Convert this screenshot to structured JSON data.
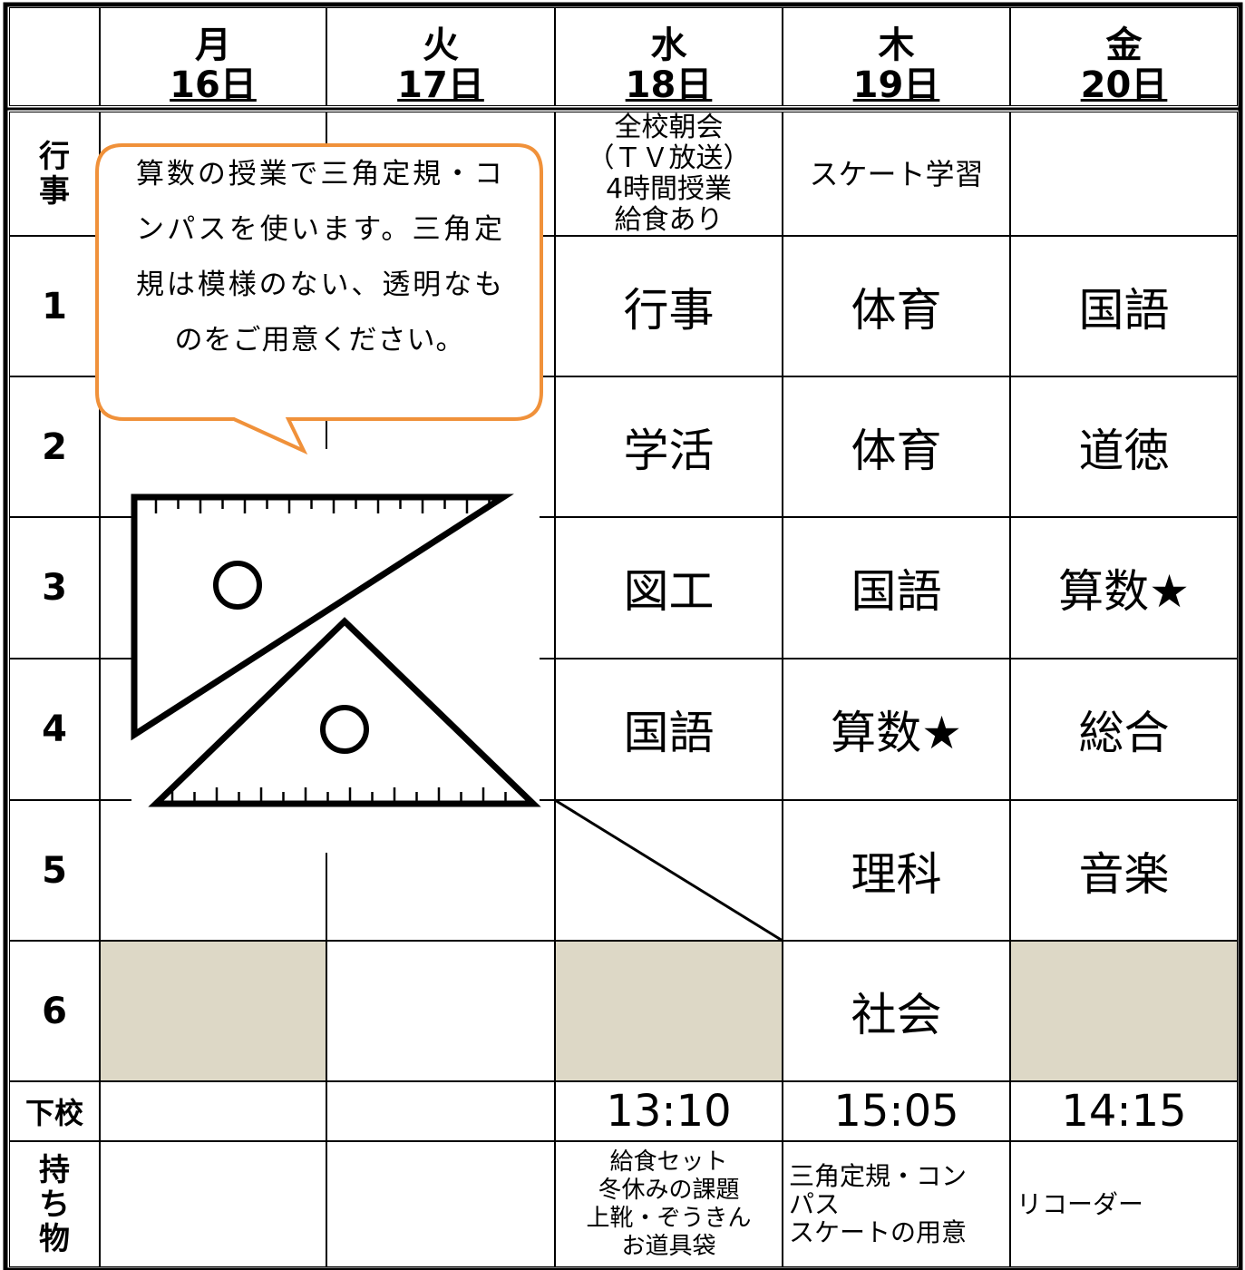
{
  "header": {
    "days": [
      {
        "weekday": "月",
        "date": "16日"
      },
      {
        "weekday": "火",
        "date": "17日"
      },
      {
        "weekday": "水",
        "date": "18日"
      },
      {
        "weekday": "木",
        "date": "19日"
      },
      {
        "weekday": "金",
        "date": "20日"
      }
    ]
  },
  "rows": {
    "events": {
      "label": "行事",
      "cells": [
        null,
        null,
        [
          "全校朝会",
          "（ＴＶ放送）",
          "4時間授業",
          "給食あり"
        ],
        [
          "スケート学習"
        ],
        null
      ]
    },
    "periods": [
      {
        "label": "1",
        "cells": [
          null,
          null,
          "行事",
          "体育",
          "国語"
        ]
      },
      {
        "label": "2",
        "cells": [
          null,
          null,
          "学活",
          "体育",
          "道徳"
        ]
      },
      {
        "label": "3",
        "cells": [
          null,
          null,
          "図工",
          "国語",
          "算数★"
        ]
      },
      {
        "label": "4",
        "cells": [
          null,
          null,
          "国語",
          "算数★",
          "総合"
        ]
      },
      {
        "label": "5",
        "cells": [
          null,
          null,
          null,
          "理科",
          "音楽"
        ]
      },
      {
        "label": "6",
        "cells": [
          null,
          null,
          null,
          "社会",
          null
        ]
      }
    ],
    "dismissal": {
      "label": "下校",
      "cells": [
        null,
        null,
        "13:10",
        "15:05",
        "14:15"
      ]
    },
    "belongings": {
      "label": "持ち物",
      "cells": [
        null,
        null,
        [
          "給食セット",
          "冬休みの課題",
          "上靴・ぞうきん",
          "お道具袋"
        ],
        [
          "三角定規・コン",
          "パス",
          "スケートの用意"
        ],
        [
          "リコーダー"
        ]
      ]
    }
  },
  "callout": {
    "text": "算数の授業で三角定規・コンパスを使います。三角定規は模様のない、透明なものをご用意ください。"
  }
}
